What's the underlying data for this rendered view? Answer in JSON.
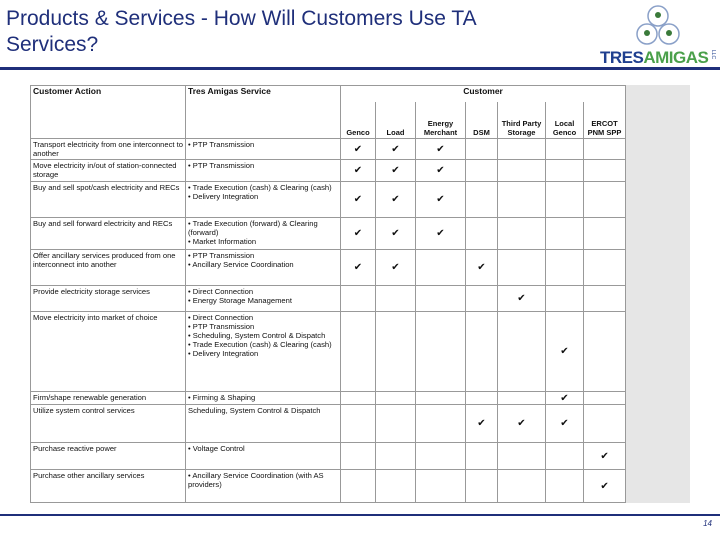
{
  "header": {
    "title": "Products & Services - How Will Customers Use TA Services?",
    "logo": {
      "part1": "TRES",
      "part2": "AMIGAS",
      "suffix": "LLC"
    }
  },
  "table": {
    "head": {
      "action": "Customer Action",
      "service": "Tres Amigas Service",
      "group": "Customer",
      "columns": [
        "Genco",
        "Load",
        "Energy Merchant",
        "DSM",
        "Third Party Storage",
        "Local Genco",
        "ERCOT PNM SPP"
      ]
    },
    "rows": [
      {
        "action": "Transport electricity from one interconnect to another",
        "service": [
          "• PTP Transmission"
        ],
        "cells": [
          "✔",
          "✔",
          "✔",
          null,
          null,
          null,
          null
        ]
      },
      {
        "action": "Move electricity in/out of station-connected storage",
        "service": [
          "• PTP Transmission"
        ],
        "cells": [
          "✔",
          "✔",
          "✔",
          null,
          null,
          null,
          null
        ]
      },
      {
        "action": "Buy and sell spot/cash electricity and RECs",
        "service": [
          "• Trade Execution (cash) & Clearing (cash)",
          "• Delivery Integration"
        ],
        "cells": [
          "✔",
          "✔",
          "✔",
          null,
          null,
          null,
          null
        ]
      },
      {
        "action": "Buy and sell forward electricity and RECs",
        "service": [
          "• Trade Execution (forward) & Clearing (forward)",
          "• Market Information"
        ],
        "cells": [
          "✔",
          "✔",
          "✔",
          null,
          null,
          null,
          null
        ]
      },
      {
        "action": "Offer ancillary services produced from one interconnect into another",
        "service": [
          "• PTP Transmission",
          "• Ancillary Service Coordination"
        ],
        "cells": [
          "✔",
          "✔",
          null,
          "✔",
          null,
          null,
          null
        ]
      },
      {
        "action": "Provide electricity storage services",
        "service": [
          "• Direct Connection",
          "• Energy Storage Management"
        ],
        "cells": [
          null,
          null,
          null,
          null,
          "✔",
          null,
          null
        ]
      },
      {
        "action": "Move electricity into market of choice",
        "service": [
          "• Direct Connection",
          "• PTP Transmission",
          "• Scheduling, System Control & Dispatch",
          "• Trade Execution (cash) & Clearing (cash)",
          "• Delivery Integration"
        ],
        "cells": [
          null,
          null,
          null,
          null,
          null,
          "✔",
          null
        ]
      },
      {
        "action": "Firm/shape renewable generation",
        "service": [
          "• Firming & Shaping"
        ],
        "cells": [
          null,
          null,
          null,
          null,
          null,
          "✔",
          null
        ]
      },
      {
        "action": "Utilize system control services",
        "service": [
          "Scheduling, System Control & Dispatch"
        ],
        "cells": [
          null,
          null,
          null,
          "✔",
          "✔",
          "✔",
          null
        ]
      },
      {
        "action": "Purchase reactive power",
        "service": [
          "• Voltage Control"
        ],
        "cells": [
          null,
          null,
          null,
          null,
          null,
          null,
          "✔"
        ]
      },
      {
        "action": "Purchase other ancillary services",
        "service": [
          "• Ancillary Service Coordination (with AS providers)"
        ],
        "cells": [
          null,
          null,
          null,
          null,
          null,
          null,
          "✔"
        ]
      }
    ]
  },
  "footer": {
    "page": "14"
  }
}
